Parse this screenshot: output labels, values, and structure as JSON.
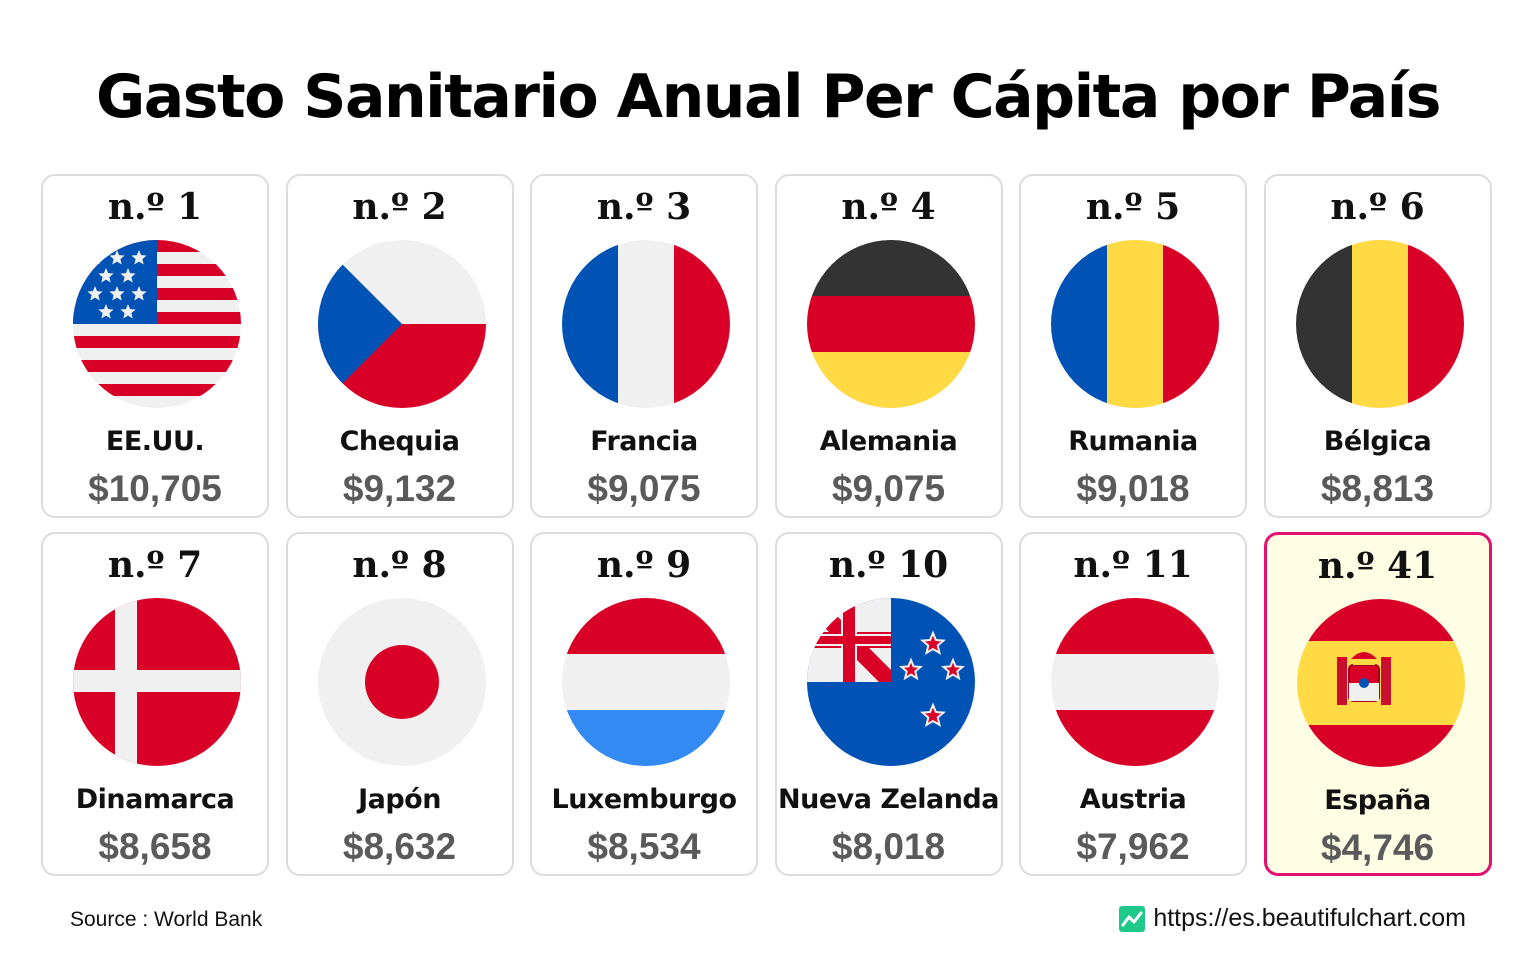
{
  "title": "Gasto Sanitario Anual Per Cápita por País",
  "source": "Source : World Bank",
  "website": "https://es.beautifulchart.com",
  "colors": {
    "highlight_border": "#e2116f",
    "highlight_bg": "#fffde3",
    "value_text": "#5a5a5a",
    "card_border": "#dcdcdc"
  },
  "chart_data": {
    "type": "table",
    "title": "Gasto Sanitario Anual Per Cápita por País",
    "columns": [
      "rank",
      "country",
      "value"
    ],
    "rows": [
      {
        "rank": "n.º 1",
        "country": "EE.UU.",
        "value": "$10,705",
        "flag": "us-flag-icon"
      },
      {
        "rank": "n.º 2",
        "country": "Chequia",
        "value": "$9,132",
        "flag": "czech-flag-icon"
      },
      {
        "rank": "n.º 3",
        "country": "Francia",
        "value": "$9,075",
        "flag": "france-flag-icon"
      },
      {
        "rank": "n.º 4",
        "country": "Alemania",
        "value": "$9,075",
        "flag": "germany-flag-icon"
      },
      {
        "rank": "n.º 5",
        "country": "Rumania",
        "value": "$9,018",
        "flag": "romania-flag-icon"
      },
      {
        "rank": "n.º 6",
        "country": "Bélgica",
        "value": "$8,813",
        "flag": "belgium-flag-icon"
      },
      {
        "rank": "n.º 7",
        "country": "Dinamarca",
        "value": "$8,658",
        "flag": "denmark-flag-icon"
      },
      {
        "rank": "n.º 8",
        "country": "Japón",
        "value": "$8,632",
        "flag": "japan-flag-icon"
      },
      {
        "rank": "n.º 9",
        "country": "Luxemburgo",
        "value": "$8,534",
        "flag": "luxembourg-flag-icon"
      },
      {
        "rank": "n.º 10",
        "country": "Nueva Zelanda",
        "value": "$8,018",
        "flag": "new-zealand-flag-icon"
      },
      {
        "rank": "n.º 11",
        "country": "Austria",
        "value": "$7,962",
        "flag": "austria-flag-icon"
      },
      {
        "rank": "n.º 41",
        "country": "España",
        "value": "$4,746",
        "flag": "spain-flag-icon",
        "highlighted": true
      }
    ]
  }
}
